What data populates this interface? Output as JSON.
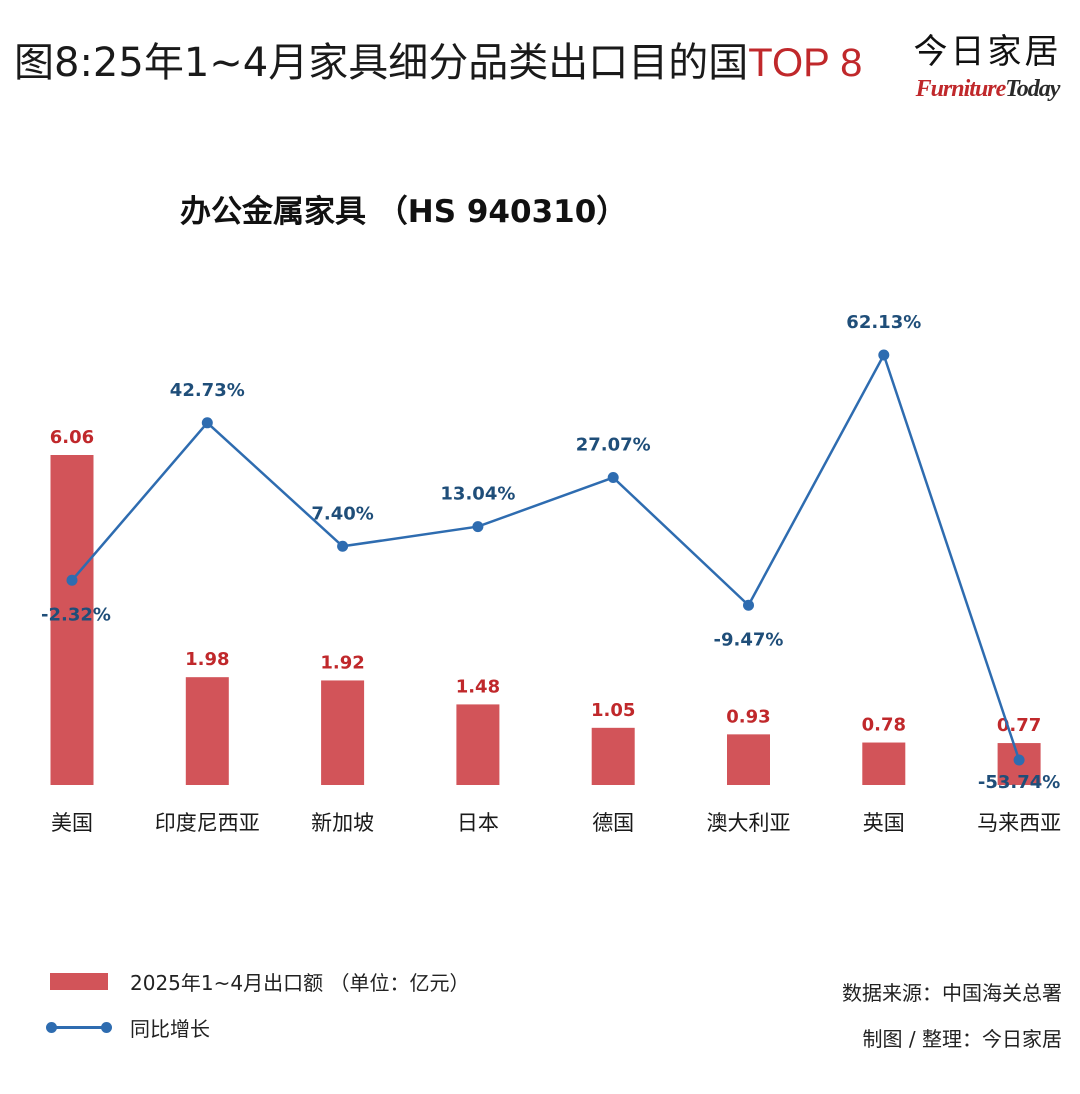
{
  "header": {
    "title_main": "图8:25年1~4月家具细分品类出口目的国",
    "title_highlight": "TOP 8"
  },
  "logo": {
    "cn": "今日家居",
    "en_prefix": "Furniture",
    "en_suffix": "Today"
  },
  "colors": {
    "bar": "#d25459",
    "bar_label": "#c0282b",
    "line": "#2e6cb0",
    "line_label": "#1f4e79"
  },
  "chart_data": {
    "type": "bar",
    "title": "办公金属家具 （HS 940310）",
    "categories": [
      "美国",
      "印度尼西亚",
      "新加坡",
      "日本",
      "德国",
      "澳大利亚",
      "英国",
      "马来西亚"
    ],
    "series": [
      {
        "name": "2025年1~4月出口额 （单位：亿元）",
        "type": "bar",
        "values": [
          6.06,
          1.98,
          1.92,
          1.48,
          1.05,
          0.93,
          0.78,
          0.77
        ],
        "labels": [
          "6.06",
          "1.98",
          "1.92",
          "1.48",
          "1.05",
          "0.93",
          "0.78",
          "0.77"
        ]
      },
      {
        "name": "同比增长",
        "type": "line",
        "values": [
          -2.32,
          42.73,
          7.4,
          13.04,
          27.07,
          -9.47,
          62.13,
          -53.74
        ],
        "labels": [
          "-2.32%",
          "42.73%",
          "7.40%",
          "13.04%",
          "27.07%",
          "-9.47%",
          "62.13%",
          "-53.74%"
        ]
      }
    ],
    "grid": false,
    "legend_position": "bottom-left"
  },
  "legend": {
    "bar_label": "2025年1~4月出口额 （单位：亿元）",
    "line_label": "同比增长"
  },
  "notes": {
    "source": "数据来源：中国海关总署",
    "credit": "制图 / 整理：今日家居"
  }
}
